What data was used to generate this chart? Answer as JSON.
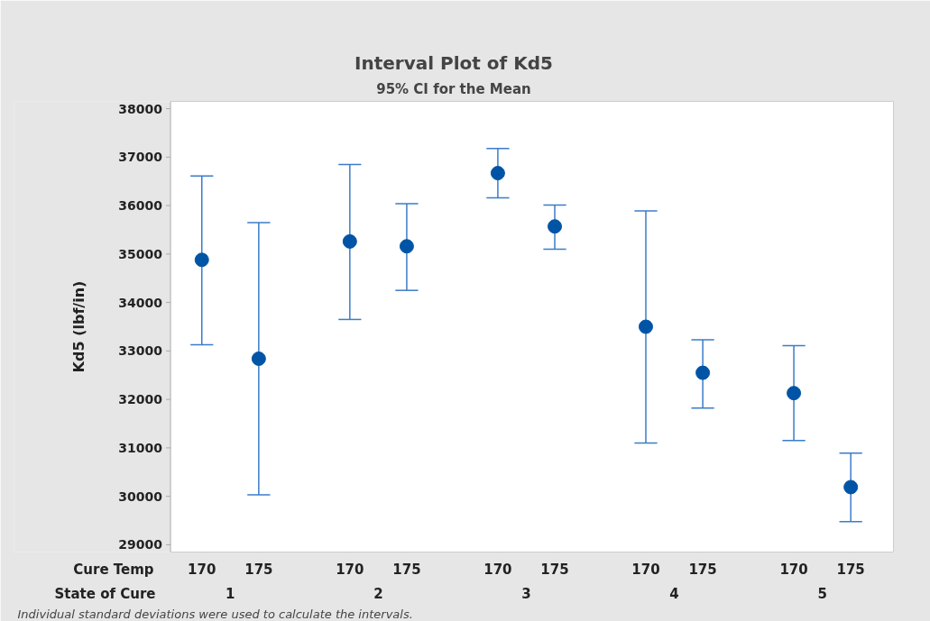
{
  "chart_data": {
    "type": "scatter",
    "title": "Interval Plot of Kd5",
    "subtitle": "95% CI for the Mean",
    "xlabel": "Cure Temp",
    "ylabel": "Kd5 (lbf/in)",
    "categories": [
      "170",
      "175",
      "170",
      "175",
      "170",
      "175",
      "170",
      "175",
      "170",
      "175"
    ],
    "series": [
      {
        "color": "#0054a6",
        "values": [
          34880,
          32840,
          35260,
          35160,
          36670,
          35570,
          33500,
          32550,
          32130,
          30190
        ],
        "errors": [
          [
            33130,
            36610
          ],
          [
            30030,
            35650
          ],
          [
            33650,
            36850
          ],
          [
            34250,
            36040
          ],
          [
            36160,
            37180
          ],
          [
            35100,
            36010
          ],
          [
            31100,
            35890
          ],
          [
            31820,
            33230
          ],
          [
            31150,
            33110
          ],
          [
            29480,
            30890
          ]
        ]
      }
    ],
    "annotations": [
      "State of Cure",
      "1",
      "2",
      "3",
      "4",
      "5",
      "Individual standard deviations were used to calculate the intervals."
    ],
    "ylim": [
      28850,
      38150
    ],
    "yticks": [
      29000,
      30000,
      31000,
      32000,
      33000,
      34000,
      35000,
      36000,
      37000,
      38000
    ],
    "marker": "circle",
    "grid": false
  }
}
